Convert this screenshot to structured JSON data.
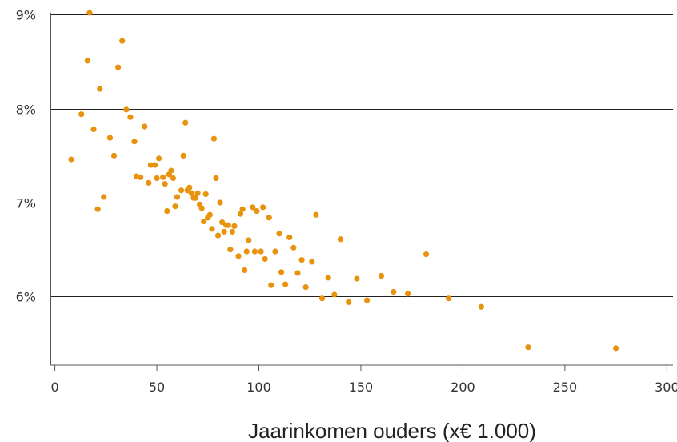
{
  "chart_data": {
    "type": "scatter",
    "title": "",
    "xlabel": "Jaarinkomen ouders (x€ 1.000)",
    "ylabel": "",
    "xlim": [
      -2,
      303
    ],
    "ylim": [
      5.27,
      9.02
    ],
    "x_ticks": [
      0,
      50,
      100,
      150,
      200,
      250,
      300
    ],
    "x_tick_labels": [
      "0",
      "50",
      "100",
      "150",
      "200",
      "250",
      "300"
    ],
    "y_ticks": [
      6,
      7,
      8,
      9
    ],
    "y_tick_labels": [
      "6%",
      "7%",
      "8%",
      "9%"
    ],
    "grid": "horizontal",
    "legend": "none",
    "colors": {
      "points": "#E8920E",
      "grid": "#222222",
      "axis": "#555555"
    },
    "points": [
      [
        8,
        7.46
      ],
      [
        13,
        7.94
      ],
      [
        16,
        8.51
      ],
      [
        17,
        9.02
      ],
      [
        19,
        7.78
      ],
      [
        21,
        6.93
      ],
      [
        22,
        8.21
      ],
      [
        24,
        7.06
      ],
      [
        27,
        7.69
      ],
      [
        29,
        7.5
      ],
      [
        31,
        8.44
      ],
      [
        33,
        8.72
      ],
      [
        35,
        7.99
      ],
      [
        37,
        7.91
      ],
      [
        39,
        7.65
      ],
      [
        40,
        7.28
      ],
      [
        42,
        7.27
      ],
      [
        44,
        7.81
      ],
      [
        46,
        7.21
      ],
      [
        47,
        7.4
      ],
      [
        49,
        7.4
      ],
      [
        50,
        7.26
      ],
      [
        51,
        7.47
      ],
      [
        53,
        7.27
      ],
      [
        54,
        7.2
      ],
      [
        55,
        6.91
      ],
      [
        56,
        7.3
      ],
      [
        57,
        7.34
      ],
      [
        58,
        7.26
      ],
      [
        59,
        6.96
      ],
      [
        60,
        7.06
      ],
      [
        62,
        7.13
      ],
      [
        63,
        7.5
      ],
      [
        64,
        7.85
      ],
      [
        65,
        7.13
      ],
      [
        66,
        7.16
      ],
      [
        67,
        7.1
      ],
      [
        68,
        7.05
      ],
      [
        69,
        7.05
      ],
      [
        70,
        7.1
      ],
      [
        71,
        6.98
      ],
      [
        72,
        6.94
      ],
      [
        73,
        6.8
      ],
      [
        74,
        7.09
      ],
      [
        75,
        6.84
      ],
      [
        76,
        6.87
      ],
      [
        77,
        6.72
      ],
      [
        78,
        7.68
      ],
      [
        79,
        7.26
      ],
      [
        80,
        6.65
      ],
      [
        81,
        7.0
      ],
      [
        82,
        6.79
      ],
      [
        83,
        6.69
      ],
      [
        84,
        6.76
      ],
      [
        85,
        6.76
      ],
      [
        86,
        6.5
      ],
      [
        87,
        6.69
      ],
      [
        88,
        6.75
      ],
      [
        90,
        6.43
      ],
      [
        91,
        6.88
      ],
      [
        92,
        6.93
      ],
      [
        93,
        6.28
      ],
      [
        94,
        6.48
      ],
      [
        95,
        6.6
      ],
      [
        97,
        6.95
      ],
      [
        98,
        6.48
      ],
      [
        99,
        6.91
      ],
      [
        101,
        6.48
      ],
      [
        102,
        6.95
      ],
      [
        103,
        6.4
      ],
      [
        105,
        6.84
      ],
      [
        106,
        6.12
      ],
      [
        108,
        6.48
      ],
      [
        110,
        6.67
      ],
      [
        111,
        6.26
      ],
      [
        113,
        6.13
      ],
      [
        115,
        6.63
      ],
      [
        117,
        6.52
      ],
      [
        119,
        6.25
      ],
      [
        121,
        6.39
      ],
      [
        123,
        6.1
      ],
      [
        126,
        6.37
      ],
      [
        128,
        6.87
      ],
      [
        131,
        5.98
      ],
      [
        134,
        6.2
      ],
      [
        137,
        6.02
      ],
      [
        140,
        6.61
      ],
      [
        144,
        5.94
      ],
      [
        148,
        6.19
      ],
      [
        153,
        5.96
      ],
      [
        160,
        6.22
      ],
      [
        166,
        6.05
      ],
      [
        173,
        6.03
      ],
      [
        182,
        6.45
      ],
      [
        193,
        5.98
      ],
      [
        209,
        5.89
      ],
      [
        232,
        5.46
      ],
      [
        275,
        5.45
      ]
    ]
  }
}
